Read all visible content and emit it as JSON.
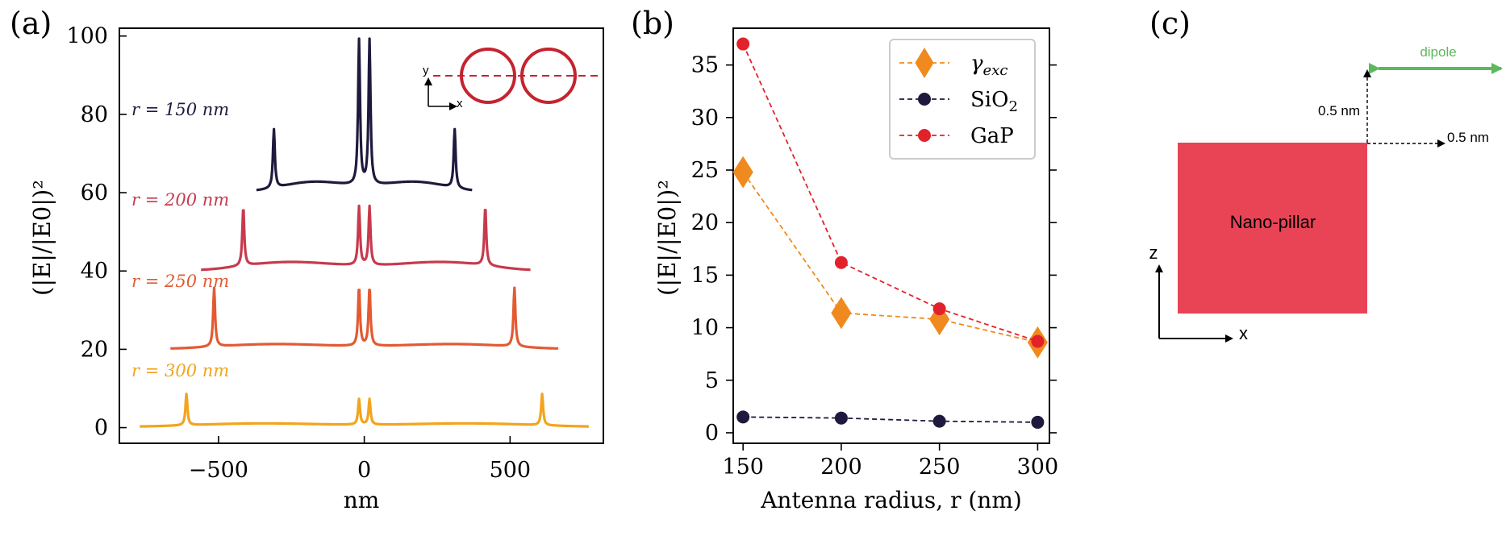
{
  "panels": {
    "a": {
      "label": "(a)",
      "ylabel": "(|E|/|E0|)²",
      "xlabel": "nm",
      "inset": {
        "axis_y": "y",
        "axis_x": "x"
      },
      "chart_data": {
        "type": "line",
        "title": "",
        "xlabel": "nm",
        "ylabel": "(|E|/|E0|)^2",
        "xlim": [
          -840,
          820
        ],
        "ylim": [
          -4,
          102
        ],
        "xticks": [
          -500,
          0,
          500
        ],
        "xtick_labels": [
          "−500",
          "0",
          "500"
        ],
        "yticks": [
          0,
          20,
          40,
          60,
          80,
          100
        ],
        "ytick_labels": [
          "0",
          "20",
          "40",
          "60",
          "80",
          "100"
        ],
        "series": [
          {
            "name": "r = 150 nm",
            "color": "#1f1a3d",
            "offset": 60,
            "range": [
              -370,
              370
            ],
            "outer_peaks": [
              {
                "x": -310,
                "h": 15
              },
              {
                "x": 310,
                "h": 15
              }
            ],
            "inner_peaks": [
              {
                "x": -18,
                "h": 37
              },
              {
                "x": 18,
                "h": 37
              }
            ],
            "baseline": [
              0.6,
              2.5
            ]
          },
          {
            "name": "r = 200 nm",
            "color": "#c73a4d",
            "offset": 40,
            "range": [
              -560,
              570
            ],
            "outer_peaks": [
              {
                "x": -415,
                "h": 15
              },
              {
                "x": 415,
                "h": 15
              }
            ],
            "inner_peaks": [
              {
                "x": -18,
                "h": 15
              },
              {
                "x": 18,
                "h": 15
              }
            ],
            "baseline": [
              0.3,
              2.3
            ]
          },
          {
            "name": "r = 250 nm",
            "color": "#e35a32",
            "offset": 20,
            "range": [
              -665,
              665
            ],
            "outer_peaks": [
              {
                "x": -515,
                "h": 15
              },
              {
                "x": 515,
                "h": 15
              }
            ],
            "inner_peaks": [
              {
                "x": -18,
                "h": 15
              },
              {
                "x": 18,
                "h": 15
              }
            ],
            "baseline": [
              0.2,
              1.3
            ]
          },
          {
            "name": "r = 300 nm",
            "color": "#f2a41c",
            "offset": 0,
            "range": [
              -770,
              770
            ],
            "outer_peaks": [
              {
                "x": -610,
                "h": 8
              },
              {
                "x": 610,
                "h": 8
              }
            ],
            "inner_peaks": [
              {
                "x": -18,
                "h": 6.5
              },
              {
                "x": 18,
                "h": 6.5
              }
            ],
            "baseline": [
              0.3,
              0.9
            ]
          }
        ],
        "curve_labels": [
          {
            "text": "r = 150 nm",
            "color": "#1f1a3d"
          },
          {
            "text": "r = 200 nm",
            "color": "#c73a4d"
          },
          {
            "text": "r = 250 nm",
            "color": "#e35a32"
          },
          {
            "text": "r = 300 nm",
            "color": "#f2a41c"
          }
        ]
      }
    },
    "b": {
      "label": "(b)",
      "ylabel": "(|E|/|E0|)²",
      "xlabel": "Antenna radius, r (nm)",
      "chart_data": {
        "type": "line",
        "title": "",
        "xlabel": "Antenna radius, r (nm)",
        "ylabel": "(|E|/|E0|)^2",
        "xlim": [
          145,
          306
        ],
        "ylim": [
          -1,
          38.5
        ],
        "x": [
          150,
          200,
          250,
          300
        ],
        "xticks": [
          150,
          200,
          250,
          300
        ],
        "yticks": [
          0,
          5,
          10,
          15,
          20,
          25,
          30,
          35
        ],
        "legend_position": "top-right",
        "series": [
          {
            "name": "γexc",
            "legend_main": "γ",
            "legend_sub": "exc",
            "color": "#f08a1e",
            "marker": "diamond",
            "values": [
              24.8,
              11.4,
              10.8,
              8.6
            ]
          },
          {
            "name": "SiO2",
            "legend_main": "SiO",
            "legend_sub": "2",
            "color": "#1f1a3d",
            "marker": "circle",
            "values": [
              1.5,
              1.4,
              1.1,
              1.0
            ]
          },
          {
            "name": "GaP",
            "legend_main": "GaP",
            "legend_sub": "",
            "color": "#e2222b",
            "marker": "circle",
            "values": [
              37.0,
              16.2,
              11.8,
              8.7
            ]
          }
        ]
      }
    },
    "c": {
      "label": "(c)",
      "dipole_label": "dipole",
      "gap_vertical": "0.5 nm",
      "gap_horizontal": "0.5 nm",
      "pillar_label": "Nano-pillar",
      "axis_z": "z",
      "axis_x": "x",
      "colors": {
        "pillar": "#e84455",
        "dipole": "#5cb85c"
      }
    }
  }
}
